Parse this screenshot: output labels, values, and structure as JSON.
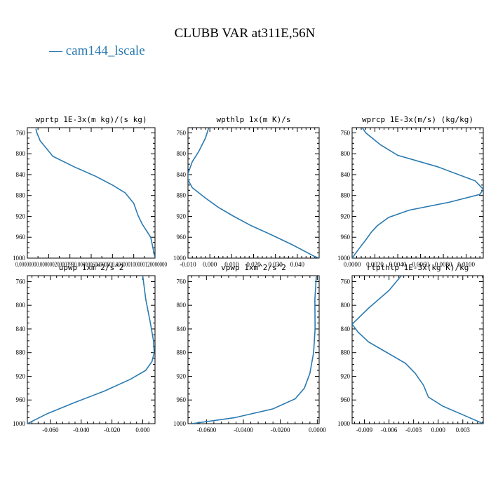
{
  "chart_data": {
    "type": "line",
    "title": "CLUBB VAR at311E,56N",
    "legend": {
      "placement": "top-left",
      "entries": [
        {
          "label": "— cam144_lscale",
          "color": "#2a7ab0"
        }
      ]
    },
    "series_color": "#2a7ab0",
    "y_range": [
      1000,
      750
    ],
    "y_ticks": [
      760,
      800,
      840,
      880,
      920,
      960,
      1000
    ],
    "panels": [
      {
        "title": "wprtp  1E-3x(m kg)/(s kg)",
        "xlim": [
          0.0,
          6e-05
        ],
        "x_ticks": [],
        "x_tick_text": "0.00000000.000000200003990.000000600000800.000000100000120000000",
        "series": [
          {
            "x": 4e-06,
            "y": 752
          },
          {
            "x": 4.5e-06,
            "y": 760
          },
          {
            "x": 6e-06,
            "y": 775
          },
          {
            "x": 1.2e-05,
            "y": 805
          },
          {
            "x": 2.2e-05,
            "y": 825
          },
          {
            "x": 3.2e-05,
            "y": 843
          },
          {
            "x": 4e-05,
            "y": 860
          },
          {
            "x": 4.6e-05,
            "y": 875
          },
          {
            "x": 5e-05,
            "y": 895
          },
          {
            "x": 5.2e-05,
            "y": 918
          },
          {
            "x": 5.4e-05,
            "y": 935
          },
          {
            "x": 5.8e-05,
            "y": 960
          },
          {
            "x": 6e-05,
            "y": 1000
          }
        ]
      },
      {
        "title": "wpthlp  1x(m K)/s",
        "xlim": [
          -0.01,
          0.05
        ],
        "x_ticks": [
          {
            "v": -0.01,
            "label": "-0.010"
          },
          {
            "v": 0.0,
            "label": "0.000"
          },
          {
            "v": 0.01,
            "label": "0.010"
          },
          {
            "v": 0.02,
            "label": "0.020"
          },
          {
            "v": 0.03,
            "label": "0.030"
          },
          {
            "v": 0.04,
            "label": "0.040"
          }
        ],
        "series": [
          {
            "x": -0.0005,
            "y": 750
          },
          {
            "x": -0.002,
            "y": 770
          },
          {
            "x": -0.005,
            "y": 795
          },
          {
            "x": -0.008,
            "y": 815
          },
          {
            "x": -0.01,
            "y": 838
          },
          {
            "x": -0.01,
            "y": 850
          },
          {
            "x": -0.008,
            "y": 865
          },
          {
            "x": -0.002,
            "y": 885
          },
          {
            "x": 0.004,
            "y": 903
          },
          {
            "x": 0.011,
            "y": 920
          },
          {
            "x": 0.019,
            "y": 938
          },
          {
            "x": 0.028,
            "y": 955
          },
          {
            "x": 0.038,
            "y": 975
          },
          {
            "x": 0.048,
            "y": 997
          },
          {
            "x": 0.05,
            "y": 1000
          }
        ]
      },
      {
        "title": "wprcp  1E-3x(m/s) (kg/kg)",
        "xlim": [
          0.0,
          0.0115
        ],
        "x_ticks": [
          {
            "v": 0.0,
            "label": "0.0000"
          },
          {
            "v": 0.002,
            "label": "0.0020"
          },
          {
            "v": 0.004,
            "label": "0.0040"
          },
          {
            "v": 0.006,
            "label": "0.0060"
          },
          {
            "v": 0.008,
            "label": "0.0080"
          },
          {
            "v": 0.01,
            "label": "0.0100"
          }
        ],
        "series": [
          {
            "x": 0.0009,
            "y": 750
          },
          {
            "x": 0.0012,
            "y": 760
          },
          {
            "x": 0.0025,
            "y": 783
          },
          {
            "x": 0.004,
            "y": 803
          },
          {
            "x": 0.0075,
            "y": 825
          },
          {
            "x": 0.0108,
            "y": 852
          },
          {
            "x": 0.0115,
            "y": 868
          },
          {
            "x": 0.0112,
            "y": 878
          },
          {
            "x": 0.0085,
            "y": 893
          },
          {
            "x": 0.005,
            "y": 908
          },
          {
            "x": 0.0032,
            "y": 922
          },
          {
            "x": 0.0022,
            "y": 938
          },
          {
            "x": 0.0017,
            "y": 950
          },
          {
            "x": 0.0012,
            "y": 965
          },
          {
            "x": 0.0005,
            "y": 985
          },
          {
            "x": 0.0,
            "y": 1000
          }
        ]
      },
      {
        "title": "upwp  1xm^2/s^2",
        "xlim": [
          -0.075,
          0.008
        ],
        "x_ticks": [
          {
            "v": -0.06,
            "label": "-0.060"
          },
          {
            "v": -0.04,
            "label": "-0.040"
          },
          {
            "v": -0.02,
            "label": "-0.020"
          },
          {
            "v": 0.0,
            "label": "0.000"
          }
        ],
        "series": [
          {
            "x": 0.0,
            "y": 750
          },
          {
            "x": 0.002,
            "y": 790
          },
          {
            "x": 0.005,
            "y": 830
          },
          {
            "x": 0.007,
            "y": 860
          },
          {
            "x": 0.0075,
            "y": 880
          },
          {
            "x": 0.006,
            "y": 895
          },
          {
            "x": 0.002,
            "y": 910
          },
          {
            "x": -0.008,
            "y": 925
          },
          {
            "x": -0.025,
            "y": 945
          },
          {
            "x": -0.045,
            "y": 965
          },
          {
            "x": -0.062,
            "y": 983
          },
          {
            "x": -0.075,
            "y": 1000
          }
        ]
      },
      {
        "title": "vpwp  1xm^2/s^2",
        "xlim": [
          -0.07,
          0.001
        ],
        "x_ticks": [
          {
            "v": -0.06,
            "label": "-0.0600"
          },
          {
            "v": -0.04,
            "label": "-0.0400"
          },
          {
            "v": -0.02,
            "label": "-0.0200"
          },
          {
            "v": 0.0,
            "label": "0.0000"
          }
        ],
        "series": [
          {
            "x": -0.0005,
            "y": 750
          },
          {
            "x": -0.0013,
            "y": 790
          },
          {
            "x": -0.0012,
            "y": 840
          },
          {
            "x": -0.002,
            "y": 880
          },
          {
            "x": -0.004,
            "y": 915
          },
          {
            "x": -0.007,
            "y": 940
          },
          {
            "x": -0.012,
            "y": 958
          },
          {
            "x": -0.024,
            "y": 975
          },
          {
            "x": -0.045,
            "y": 990
          },
          {
            "x": -0.068,
            "y": 1000
          }
        ]
      },
      {
        "title": "rtpthlp  1E-3x(kg K)/kg",
        "xlim": [
          -0.0105,
          0.0055
        ],
        "x_ticks": [
          {
            "v": -0.009,
            "label": "-0.009"
          },
          {
            "v": -0.006,
            "label": "-0.006"
          },
          {
            "v": -0.003,
            "label": "-0.003"
          },
          {
            "v": 0.0,
            "label": "0.000"
          },
          {
            "v": 0.003,
            "label": "0.003"
          }
        ],
        "series": [
          {
            "x": -0.0045,
            "y": 750
          },
          {
            "x": -0.006,
            "y": 775
          },
          {
            "x": -0.0085,
            "y": 805
          },
          {
            "x": -0.0105,
            "y": 832
          },
          {
            "x": -0.0098,
            "y": 845
          },
          {
            "x": -0.0085,
            "y": 862
          },
          {
            "x": -0.0065,
            "y": 878
          },
          {
            "x": -0.004,
            "y": 898
          },
          {
            "x": -0.0028,
            "y": 915
          },
          {
            "x": -0.0018,
            "y": 935
          },
          {
            "x": -0.0012,
            "y": 955
          },
          {
            "x": 0.0005,
            "y": 970
          },
          {
            "x": 0.003,
            "y": 985
          },
          {
            "x": 0.0055,
            "y": 1000
          }
        ]
      }
    ]
  }
}
